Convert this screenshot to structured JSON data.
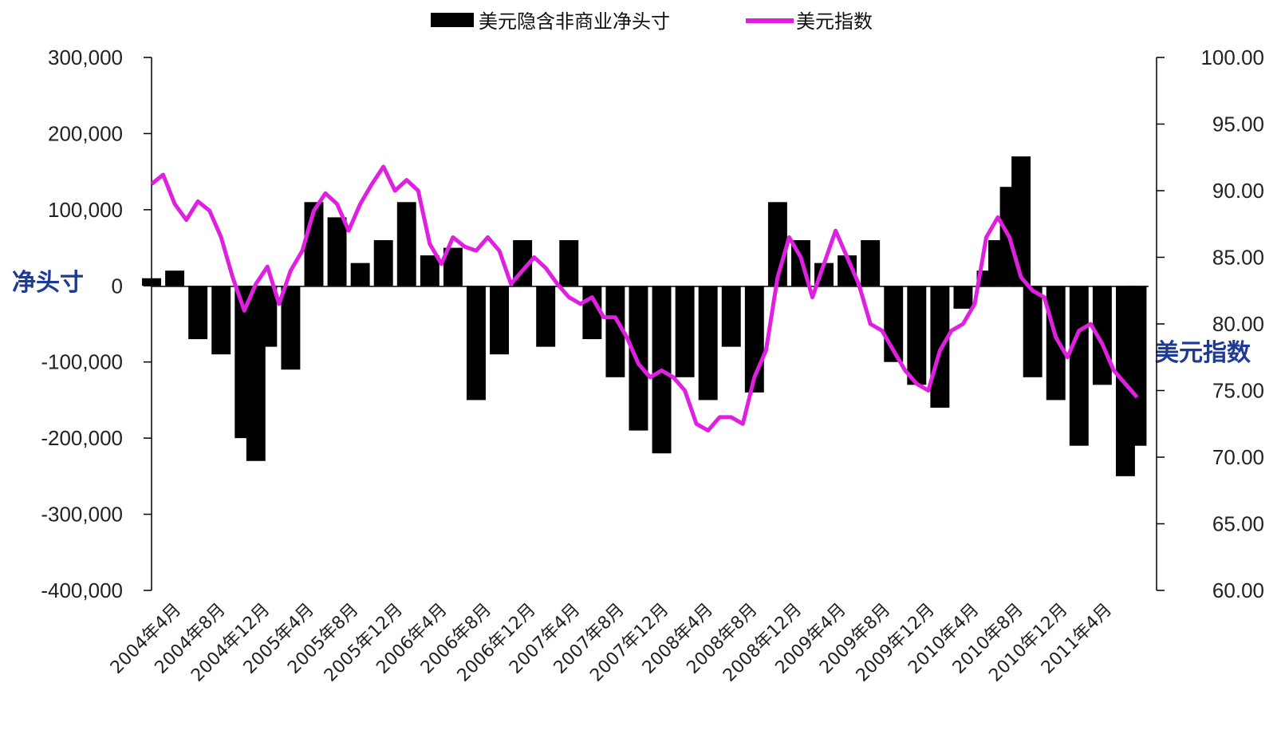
{
  "chart_data": {
    "type": "bar+line",
    "title": "",
    "legend": [
      "美元隐含非商业净头寸",
      "美元指数"
    ],
    "legend_position": "top",
    "ylabel_left": "净头寸",
    "ylabel_right": "美元指数",
    "ylim_left": [
      -400000,
      300000
    ],
    "ylim_right": [
      60,
      100
    ],
    "yticks_left": [
      "300,000",
      "200,000",
      "100,000",
      "0",
      "-100,000",
      "-200,000",
      "-300,000",
      "-400,000"
    ],
    "yticks_right": [
      "100.00",
      "95.00",
      "90.00",
      "85.00",
      "80.00",
      "75.00",
      "70.00",
      "65.00",
      "60.00"
    ],
    "xtick_labels": [
      "2004年4月",
      "2004年8月",
      "2004年12月",
      "2005年4月",
      "2005年8月",
      "2005年12月",
      "2006年4月",
      "2006年8月",
      "2006年12月",
      "2007年4月",
      "2007年8月",
      "2007年12月",
      "2008年4月",
      "2008年8月",
      "2008年12月",
      "2009年4月",
      "2009年8月",
      "2009年12月",
      "2010年4月",
      "2010年8月",
      "2010年12月",
      "2011年4月"
    ],
    "colors": {
      "bars": "#000000",
      "line": "#e020e0"
    },
    "series": [
      {
        "name": "美元隐含非商业净头寸",
        "type": "bar",
        "x": [
          "2004-04",
          "2004-06",
          "2004-08",
          "2004-10",
          "2004-12",
          "2005-01",
          "2005-02",
          "2005-04",
          "2005-06",
          "2005-08",
          "2005-10",
          "2005-12",
          "2006-02",
          "2006-04",
          "2006-06",
          "2006-08",
          "2006-10",
          "2006-12",
          "2007-02",
          "2007-04",
          "2007-06",
          "2007-08",
          "2007-10",
          "2007-12",
          "2008-02",
          "2008-04",
          "2008-06",
          "2008-08",
          "2008-10",
          "2008-12",
          "2009-02",
          "2009-04",
          "2009-06",
          "2009-08",
          "2009-10",
          "2009-12",
          "2010-02",
          "2010-04",
          "2010-05",
          "2010-06",
          "2010-07",
          "2010-08",
          "2010-10",
          "2010-12",
          "2011-02",
          "2011-04",
          "2011-05"
        ],
        "values": [
          10000,
          20000,
          -70000,
          -90000,
          -200000,
          -230000,
          -80000,
          -110000,
          110000,
          90000,
          30000,
          60000,
          110000,
          40000,
          50000,
          -150000,
          -90000,
          60000,
          -80000,
          60000,
          -70000,
          -120000,
          -190000,
          -220000,
          -120000,
          -150000,
          -80000,
          -140000,
          110000,
          60000,
          30000,
          40000,
          60000,
          -100000,
          -130000,
          -160000,
          -30000,
          20000,
          60000,
          130000,
          170000,
          -120000,
          -150000,
          -210000,
          -130000,
          -250000,
          -210000
        ]
      },
      {
        "name": "美元指数",
        "type": "line",
        "x": [
          "2004-04",
          "2004-05",
          "2004-06",
          "2004-07",
          "2004-08",
          "2004-09",
          "2004-10",
          "2004-11",
          "2004-12",
          "2005-01",
          "2005-02",
          "2005-03",
          "2005-04",
          "2005-05",
          "2005-06",
          "2005-07",
          "2005-08",
          "2005-09",
          "2005-10",
          "2005-11",
          "2005-12",
          "2006-01",
          "2006-02",
          "2006-03",
          "2006-04",
          "2006-05",
          "2006-06",
          "2006-07",
          "2006-08",
          "2006-09",
          "2006-10",
          "2006-11",
          "2006-12",
          "2007-01",
          "2007-02",
          "2007-03",
          "2007-04",
          "2007-05",
          "2007-06",
          "2007-07",
          "2007-08",
          "2007-09",
          "2007-10",
          "2007-11",
          "2007-12",
          "2008-01",
          "2008-02",
          "2008-03",
          "2008-04",
          "2008-05",
          "2008-06",
          "2008-07",
          "2008-08",
          "2008-09",
          "2008-10",
          "2008-11",
          "2008-12",
          "2009-01",
          "2009-02",
          "2009-03",
          "2009-04",
          "2009-05",
          "2009-06",
          "2009-07",
          "2009-08",
          "2009-09",
          "2009-10",
          "2009-11",
          "2009-12",
          "2010-01",
          "2010-02",
          "2010-03",
          "2010-04",
          "2010-05",
          "2010-06",
          "2010-07",
          "2010-08",
          "2010-09",
          "2010-10",
          "2010-11",
          "2010-12",
          "2011-01",
          "2011-02",
          "2011-03",
          "2011-04",
          "2011-05"
        ],
        "values": [
          90.5,
          91.2,
          89.0,
          87.8,
          89.2,
          88.5,
          86.5,
          83.5,
          81.0,
          83.0,
          84.3,
          81.5,
          84.0,
          85.5,
          88.5,
          89.8,
          89.0,
          87.0,
          89.0,
          90.5,
          91.8,
          90.0,
          90.8,
          90.0,
          86.0,
          84.5,
          86.5,
          85.8,
          85.5,
          86.5,
          85.5,
          83.0,
          84.0,
          85.0,
          84.2,
          83.0,
          82.0,
          81.5,
          82.0,
          80.5,
          80.5,
          79.0,
          77.0,
          76.0,
          76.5,
          76.0,
          75.0,
          72.5,
          72.0,
          73.0,
          73.0,
          72.5,
          76.0,
          78.0,
          83.5,
          86.5,
          85.0,
          82.0,
          84.5,
          87.0,
          85.0,
          83.0,
          80.0,
          79.5,
          78.0,
          76.5,
          75.5,
          75.0,
          78.0,
          79.5,
          80.0,
          81.5,
          86.5,
          88.0,
          86.5,
          83.5,
          82.5,
          82.0,
          79.0,
          77.5,
          79.5,
          80.0,
          78.5,
          76.5,
          75.5,
          74.5
        ]
      }
    ]
  }
}
